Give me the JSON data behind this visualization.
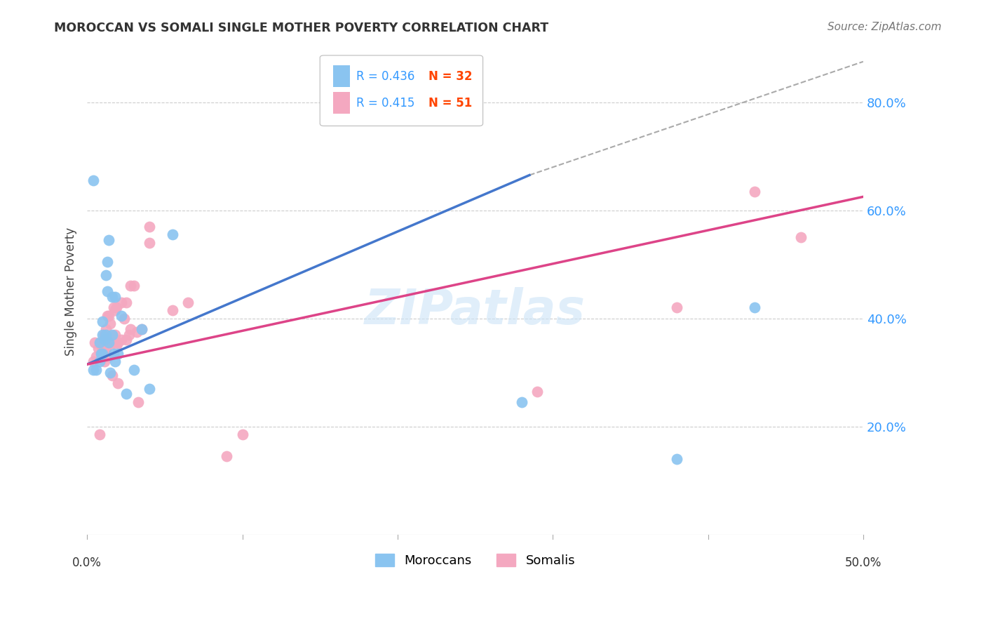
{
  "title": "MOROCCAN VS SOMALI SINGLE MOTHER POVERTY CORRELATION CHART",
  "source": "Source: ZipAtlas.com",
  "ylabel": "Single Mother Poverty",
  "xlim": [
    0.0,
    0.5
  ],
  "ylim": [
    0.0,
    0.9
  ],
  "yticks": [
    0.2,
    0.4,
    0.6,
    0.8
  ],
  "ytick_labels": [
    "20.0%",
    "40.0%",
    "60.0%",
    "80.0%"
  ],
  "background_color": "#ffffff",
  "grid_color": "#cccccc",
  "moroccan_color": "#8ac4f0",
  "somali_color": "#f4a8c0",
  "moroccan_line_color": "#4477cc",
  "somali_line_color": "#dd4488",
  "watermark_text": "ZIPatlas",
  "moroccan_r": 0.436,
  "moroccan_n": 32,
  "somali_r": 0.415,
  "somali_n": 51,
  "moroccan_line_x": [
    0.0,
    0.285
  ],
  "moroccan_line_y": [
    0.315,
    0.665
  ],
  "somali_line_x": [
    0.0,
    0.5
  ],
  "somali_line_y": [
    0.315,
    0.625
  ],
  "dash_line_x": [
    0.285,
    0.5
  ],
  "dash_line_y": [
    0.665,
    0.875
  ],
  "moroccan_x": [
    0.004,
    0.004,
    0.006,
    0.008,
    0.008,
    0.009,
    0.01,
    0.01,
    0.01,
    0.011,
    0.012,
    0.012,
    0.013,
    0.013,
    0.014,
    0.014,
    0.015,
    0.016,
    0.016,
    0.017,
    0.018,
    0.018,
    0.02,
    0.022,
    0.025,
    0.03,
    0.035,
    0.04,
    0.055,
    0.28,
    0.38,
    0.43
  ],
  "moroccan_y": [
    0.305,
    0.655,
    0.305,
    0.32,
    0.355,
    0.335,
    0.335,
    0.37,
    0.395,
    0.36,
    0.37,
    0.48,
    0.45,
    0.505,
    0.545,
    0.355,
    0.3,
    0.37,
    0.44,
    0.335,
    0.32,
    0.44,
    0.335,
    0.405,
    0.26,
    0.305,
    0.38,
    0.27,
    0.555,
    0.245,
    0.14,
    0.42
  ],
  "somali_x": [
    0.004,
    0.005,
    0.006,
    0.007,
    0.008,
    0.009,
    0.009,
    0.01,
    0.01,
    0.011,
    0.011,
    0.012,
    0.012,
    0.013,
    0.013,
    0.014,
    0.014,
    0.014,
    0.015,
    0.015,
    0.016,
    0.017,
    0.017,
    0.018,
    0.018,
    0.019,
    0.019,
    0.02,
    0.02,
    0.022,
    0.022,
    0.024,
    0.025,
    0.025,
    0.027,
    0.028,
    0.028,
    0.03,
    0.032,
    0.033,
    0.035,
    0.04,
    0.04,
    0.055,
    0.065,
    0.09,
    0.1,
    0.29,
    0.38,
    0.43,
    0.46
  ],
  "somali_y": [
    0.32,
    0.355,
    0.33,
    0.345,
    0.185,
    0.325,
    0.35,
    0.325,
    0.355,
    0.32,
    0.37,
    0.345,
    0.38,
    0.35,
    0.405,
    0.33,
    0.365,
    0.405,
    0.355,
    0.39,
    0.295,
    0.355,
    0.42,
    0.37,
    0.415,
    0.35,
    0.42,
    0.28,
    0.355,
    0.36,
    0.43,
    0.4,
    0.36,
    0.43,
    0.37,
    0.38,
    0.46,
    0.46,
    0.375,
    0.245,
    0.38,
    0.54,
    0.57,
    0.415,
    0.43,
    0.145,
    0.185,
    0.265,
    0.42,
    0.635,
    0.55
  ]
}
